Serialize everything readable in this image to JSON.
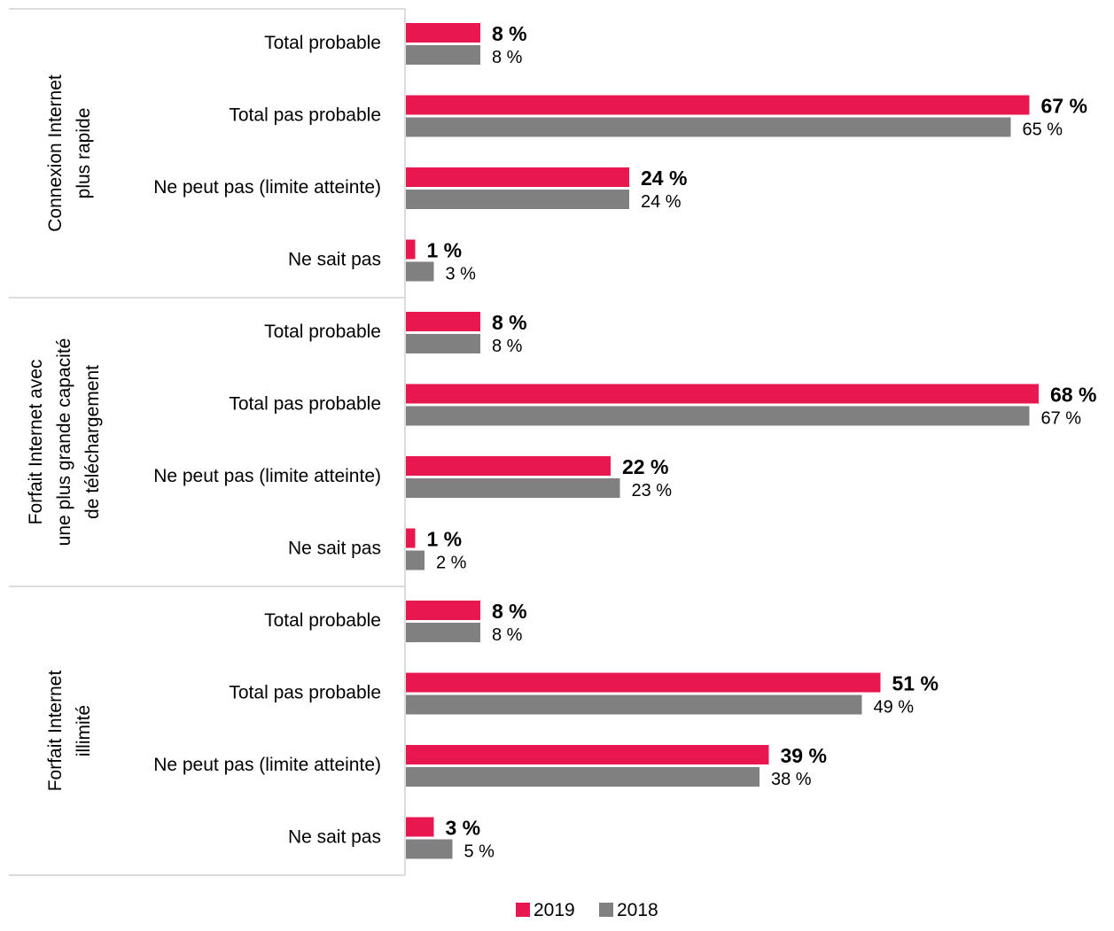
{
  "colors": {
    "series_2019": "#E8174F",
    "series_2018": "#808080",
    "grid": "#D0D0D0"
  },
  "chart_data": {
    "type": "bar",
    "orientation": "horizontal",
    "value_suffix": " %",
    "categories": [
      "Total probable",
      "Total pas probable",
      "Ne peut pas (limite atteinte)",
      "Ne sait pas"
    ],
    "groups": [
      {
        "label_lines": [
          "Connexion Internet",
          "plus rapide"
        ],
        "series": [
          {
            "name": "2019",
            "values": [
              8,
              67,
              24,
              1
            ]
          },
          {
            "name": "2018",
            "values": [
              8,
              65,
              24,
              3
            ]
          }
        ]
      },
      {
        "label_lines": [
          "Forfait Internet avec",
          "une plus grande capacité",
          "de téléchargement"
        ],
        "series": [
          {
            "name": "2019",
            "values": [
              8,
              68,
              22,
              1
            ]
          },
          {
            "name": "2018",
            "values": [
              8,
              67,
              23,
              2
            ]
          }
        ]
      },
      {
        "label_lines": [
          "Forfait Internet",
          "illimité"
        ],
        "series": [
          {
            "name": "2019",
            "values": [
              8,
              51,
              39,
              3
            ]
          },
          {
            "name": "2018",
            "values": [
              8,
              49,
              38,
              5
            ]
          }
        ]
      }
    ],
    "xlim": [
      0,
      70
    ],
    "grid": false,
    "legend_position": "bottom-center"
  },
  "legend": [
    "2019",
    "2018"
  ]
}
